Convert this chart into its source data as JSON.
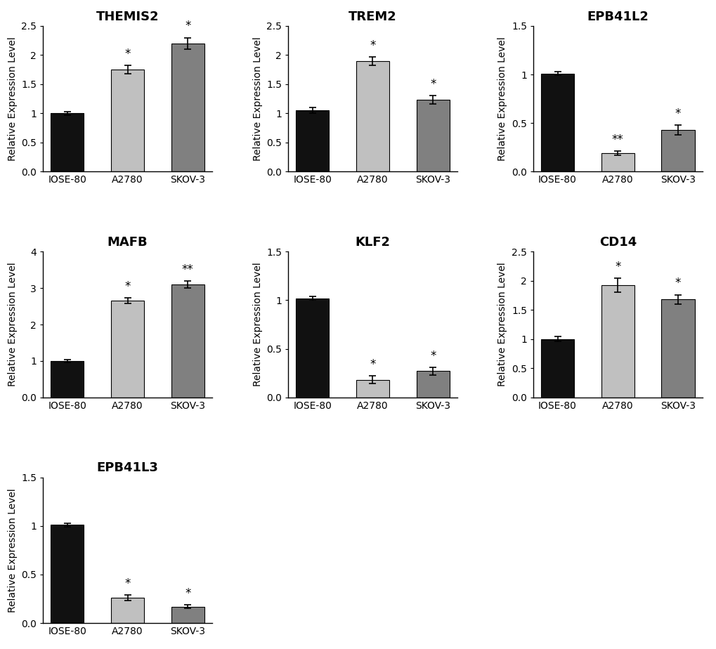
{
  "subplots": [
    {
      "title": "THEMIS2",
      "categories": [
        "IOSE-80",
        "A2780",
        "SKOV-3"
      ],
      "values": [
        1.0,
        1.75,
        2.2
      ],
      "errors": [
        0.03,
        0.07,
        0.1
      ],
      "ylim": [
        0,
        2.5
      ],
      "yticks": [
        0.0,
        0.5,
        1.0,
        1.5,
        2.0,
        2.5
      ],
      "colors": [
        "#111111",
        "#c0c0c0",
        "#808080"
      ],
      "sig_labels": [
        "",
        "*",
        "*"
      ],
      "row": 0,
      "col": 0
    },
    {
      "title": "TREM2",
      "categories": [
        "IOSE-80",
        "A2780",
        "SKOV-3"
      ],
      "values": [
        1.05,
        1.9,
        1.23
      ],
      "errors": [
        0.05,
        0.07,
        0.07
      ],
      "ylim": [
        0,
        2.5
      ],
      "yticks": [
        0.0,
        0.5,
        1.0,
        1.5,
        2.0,
        2.5
      ],
      "colors": [
        "#111111",
        "#c0c0c0",
        "#808080"
      ],
      "sig_labels": [
        "",
        "*",
        "*"
      ],
      "row": 0,
      "col": 1
    },
    {
      "title": "EPB41L2",
      "categories": [
        "IOSE-80",
        "A2780",
        "SKOV-3"
      ],
      "values": [
        1.01,
        0.19,
        0.43
      ],
      "errors": [
        0.02,
        0.02,
        0.05
      ],
      "ylim": [
        0,
        1.5
      ],
      "yticks": [
        0.0,
        0.5,
        1.0,
        1.5
      ],
      "colors": [
        "#111111",
        "#c0c0c0",
        "#808080"
      ],
      "sig_labels": [
        "",
        "**",
        "*"
      ],
      "row": 0,
      "col": 2
    },
    {
      "title": "MAFB",
      "categories": [
        "IOSE-80",
        "A2780",
        "SKOV-3"
      ],
      "values": [
        1.0,
        2.65,
        3.1
      ],
      "errors": [
        0.04,
        0.08,
        0.1
      ],
      "ylim": [
        0,
        4.0
      ],
      "yticks": [
        0,
        1,
        2,
        3,
        4
      ],
      "colors": [
        "#111111",
        "#c0c0c0",
        "#808080"
      ],
      "sig_labels": [
        "",
        "*",
        "**"
      ],
      "row": 1,
      "col": 0
    },
    {
      "title": "KLF2",
      "categories": [
        "IOSE-80",
        "A2780",
        "SKOV-3"
      ],
      "values": [
        1.02,
        0.18,
        0.27
      ],
      "errors": [
        0.02,
        0.04,
        0.04
      ],
      "ylim": [
        0,
        1.5
      ],
      "yticks": [
        0.0,
        0.5,
        1.0,
        1.5
      ],
      "colors": [
        "#111111",
        "#c0c0c0",
        "#808080"
      ],
      "sig_labels": [
        "",
        "*",
        "*"
      ],
      "row": 1,
      "col": 1
    },
    {
      "title": "CD14",
      "categories": [
        "IOSE-80",
        "A2780",
        "SKOV-3"
      ],
      "values": [
        1.0,
        1.92,
        1.68
      ],
      "errors": [
        0.04,
        0.12,
        0.08
      ],
      "ylim": [
        0,
        2.5
      ],
      "yticks": [
        0.0,
        0.5,
        1.0,
        1.5,
        2.0,
        2.5
      ],
      "colors": [
        "#111111",
        "#c0c0c0",
        "#808080"
      ],
      "sig_labels": [
        "",
        "*",
        "*"
      ],
      "row": 1,
      "col": 2
    },
    {
      "title": "EPB41L3",
      "categories": [
        "IOSE-80",
        "A2780",
        "SKOV-3"
      ],
      "values": [
        1.01,
        0.26,
        0.17
      ],
      "errors": [
        0.02,
        0.03,
        0.02
      ],
      "ylim": [
        0,
        1.5
      ],
      "yticks": [
        0.0,
        0.5,
        1.0,
        1.5
      ],
      "colors": [
        "#111111",
        "#c0c0c0",
        "#808080"
      ],
      "sig_labels": [
        "",
        "*",
        "*"
      ],
      "row": 2,
      "col": 0
    }
  ],
  "ylabel": "Relative Expression Level",
  "figure_bg": "#ffffff",
  "title_fontsize": 13,
  "tick_fontsize": 10,
  "ylabel_fontsize": 10,
  "sig_fontsize": 12,
  "bar_width": 0.55
}
